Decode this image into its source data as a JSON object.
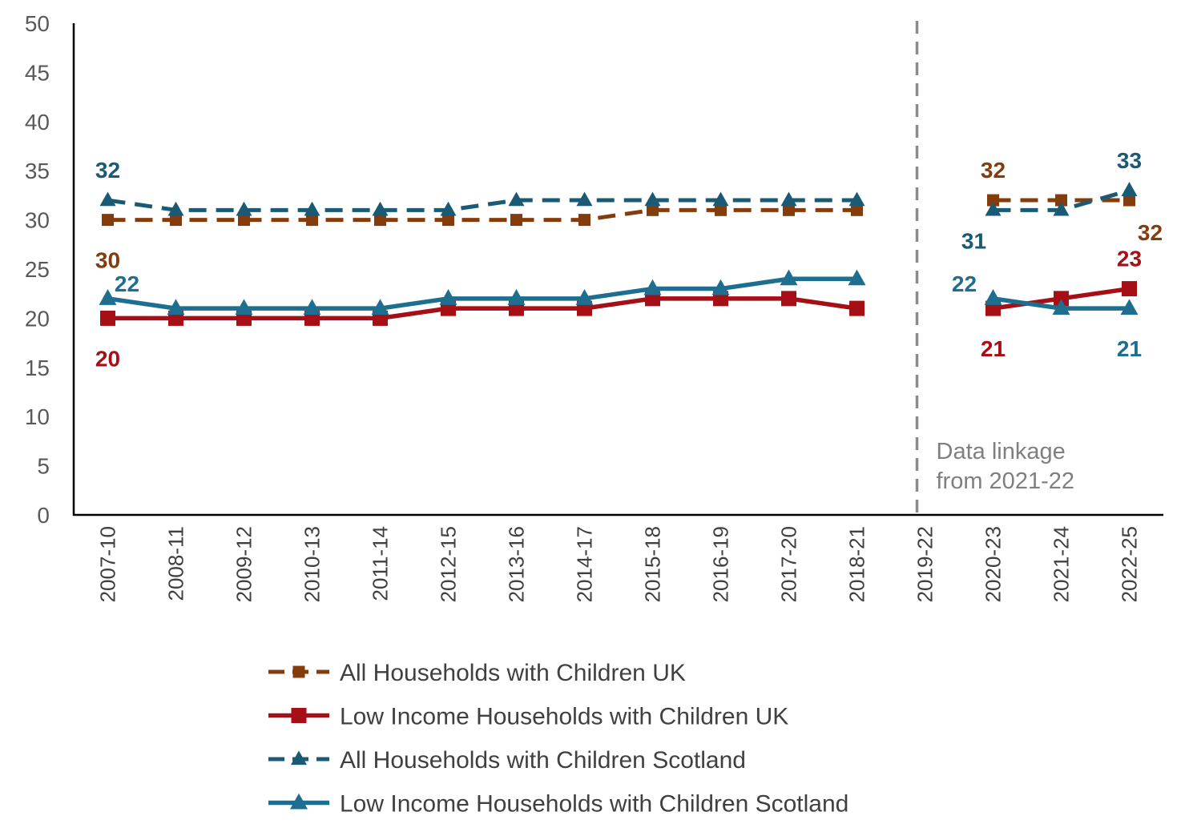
{
  "chart_data": {
    "type": "line",
    "title": "",
    "xlabel": "",
    "ylabel": "",
    "ylim": [
      0,
      50
    ],
    "yticks": [
      "0",
      "5",
      "10",
      "15",
      "20",
      "25",
      "30",
      "35",
      "40",
      "45",
      "50"
    ],
    "categories": [
      "2007-10",
      "2008-11",
      "2009-12",
      "2010-13",
      "2011-14",
      "2012-15",
      "2013-16",
      "2014-17",
      "2015-18",
      "2016-19",
      "2017-20",
      "2018-21",
      "2019-22",
      "2020-23",
      "2021-24",
      "2022-25"
    ],
    "grid": false,
    "legend_position": "bottom",
    "annotation": {
      "lines": [
        "Data linkage",
        "from 2021-22"
      ],
      "break_category": "2019-22"
    },
    "series": [
      {
        "name": "All Households with Children UK",
        "color": "#843C0C",
        "line_style": "dashed",
        "marker": "square",
        "values": [
          30,
          30,
          30,
          30,
          30,
          30,
          30,
          30,
          31,
          31,
          31,
          31,
          null,
          32,
          32,
          32
        ],
        "labels": [
          {
            "index": 0,
            "text": "30",
            "position": "below"
          },
          {
            "index": 13,
            "text": "32",
            "position": "above"
          },
          {
            "index": 15,
            "text": "32",
            "position": "below-right"
          }
        ]
      },
      {
        "name": "Low Income Households with Children UK",
        "color": "#A50F15",
        "line_style": "solid",
        "marker": "square",
        "values": [
          20,
          20,
          20,
          20,
          20,
          21,
          21,
          21,
          22,
          22,
          22,
          21,
          null,
          21,
          22,
          23
        ],
        "labels": [
          {
            "index": 0,
            "text": "20",
            "position": "below"
          },
          {
            "index": 13,
            "text": "21",
            "position": "below"
          },
          {
            "index": 15,
            "text": "23",
            "position": "above"
          }
        ]
      },
      {
        "name": "All Households with Children Scotland",
        "color": "#1B5A75",
        "line_style": "dashed",
        "marker": "triangle",
        "values": [
          32,
          31,
          31,
          31,
          31,
          31,
          32,
          32,
          32,
          32,
          32,
          32,
          null,
          31,
          31,
          33
        ],
        "labels": [
          {
            "index": 0,
            "text": "32",
            "position": "above"
          },
          {
            "index": 13,
            "text": "31",
            "position": "below-left"
          },
          {
            "index": 15,
            "text": "33",
            "position": "above"
          }
        ]
      },
      {
        "name": "Low Income Households with Children Scotland",
        "color": "#1D6E8F",
        "line_style": "solid",
        "marker": "triangle",
        "values": [
          22,
          21,
          21,
          21,
          21,
          22,
          22,
          22,
          23,
          23,
          24,
          24,
          null,
          22,
          21,
          21
        ],
        "labels": [
          {
            "index": 0,
            "text": "22",
            "position": "above-right"
          },
          {
            "index": 13,
            "text": "22",
            "position": "above-left"
          },
          {
            "index": 15,
            "text": "21",
            "position": "below"
          }
        ]
      }
    ]
  }
}
